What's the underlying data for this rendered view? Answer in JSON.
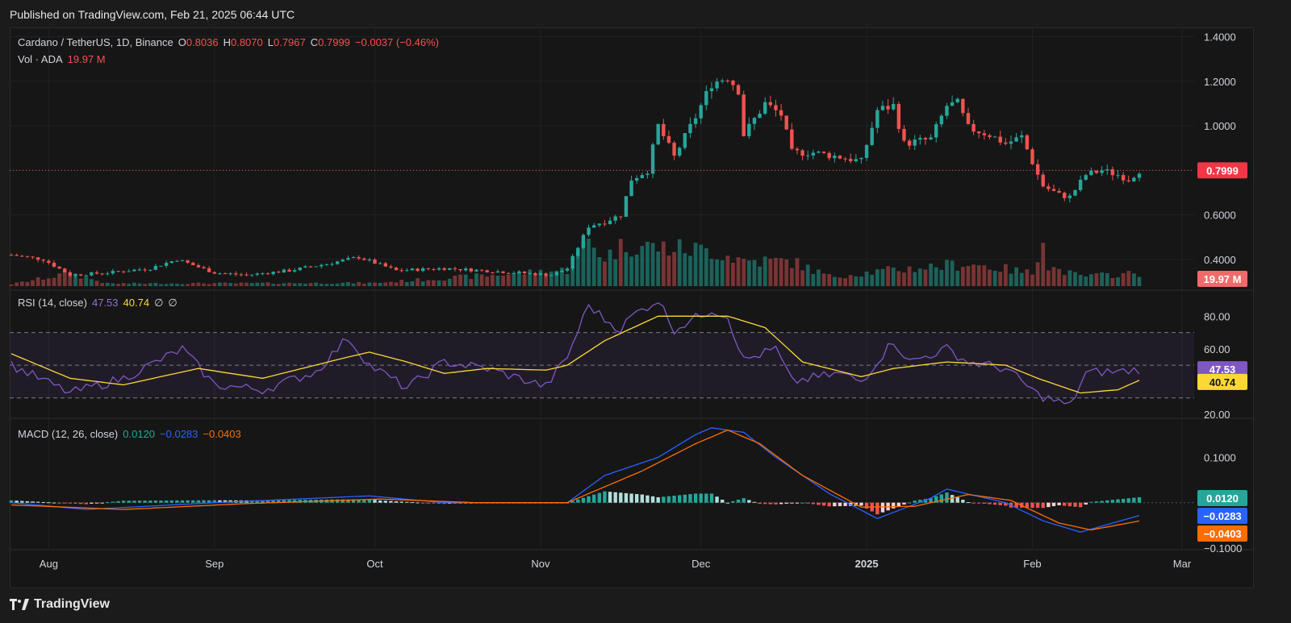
{
  "header": {
    "published": "Published on TradingView.com, Feb 21, 2025 06:44 UTC"
  },
  "footer": {
    "brand": "TradingView"
  },
  "colors": {
    "up": "#26a69a",
    "down": "#ef5350",
    "rsi": "#7e57c2",
    "rsi_ma": "#fdd835",
    "macd": "#2962ff",
    "signal": "#ff6d00"
  },
  "main_legend": {
    "symbol": "Cardano / TetherUS, 1D, Binance",
    "o_label": "O",
    "o": "0.8036",
    "h_label": "H",
    "h": "0.8070",
    "l_label": "L",
    "l": "0.7967",
    "c_label": "C",
    "c": "0.7999",
    "change": "−0.0037 (−0.46%)"
  },
  "vol_legend": {
    "label": "Vol · ADA",
    "value": "19.97 M"
  },
  "rsi_legend": {
    "label": "RSI (14, close)",
    "rsi": "47.53",
    "ma": "40.74",
    "extra1": "∅",
    "extra2": "∅"
  },
  "macd_legend": {
    "label": "MACD (12, 26, close)",
    "hist": "0.0120",
    "macd": "−0.0283",
    "signal": "−0.0403"
  },
  "price_axis": {
    "ticks": [
      "1.4000",
      "1.2000",
      "1.0000",
      "0.6000",
      "0.4000"
    ],
    "last_price": "0.7999",
    "last_volume": "19.97 M"
  },
  "rsi_axis": {
    "ticks": [
      "80.00",
      "60.00",
      "20.00"
    ],
    "rsi_badge": "47.53",
    "ma_badge": "40.74"
  },
  "macd_axis": {
    "ticks": [
      "0.1000",
      "−0.1000"
    ],
    "hist_badge": "0.0120",
    "macd_badge": "−0.0283",
    "signal_badge": "−0.0403"
  },
  "time_axis": {
    "labels": [
      "Aug",
      "Sep",
      "Oct",
      "Nov",
      "Dec",
      "2025",
      "Feb",
      "Mar"
    ]
  },
  "chart_data": {
    "type": "candlestick",
    "symbol": "ADA/USDT",
    "interval": "1D",
    "price_range": [
      0.28,
      1.42
    ],
    "volume_unit": "M",
    "price_path": [
      [
        "2024-07-25",
        0.42
      ],
      [
        "2024-07-31",
        0.4
      ],
      [
        "2024-08-05",
        0.33
      ],
      [
        "2024-08-12",
        0.34
      ],
      [
        "2024-08-20",
        0.36
      ],
      [
        "2024-08-25",
        0.4
      ],
      [
        "2024-09-01",
        0.34
      ],
      [
        "2024-09-07",
        0.33
      ],
      [
        "2024-09-15",
        0.35
      ],
      [
        "2024-09-22",
        0.38
      ],
      [
        "2024-09-28",
        0.41
      ],
      [
        "2024-10-05",
        0.35
      ],
      [
        "2024-10-14",
        0.36
      ],
      [
        "2024-10-21",
        0.35
      ],
      [
        "2024-10-28",
        0.34
      ],
      [
        "2024-11-03",
        0.33
      ],
      [
        "2024-11-06",
        0.36
      ],
      [
        "2024-11-10",
        0.55
      ],
      [
        "2024-11-13",
        0.57
      ],
      [
        "2024-11-16",
        0.6
      ],
      [
        "2024-11-18",
        0.76
      ],
      [
        "2024-11-21",
        0.8
      ],
      [
        "2024-11-23",
        1.0
      ],
      [
        "2024-11-26",
        0.86
      ],
      [
        "2024-11-30",
        1.04
      ],
      [
        "2024-12-03",
        1.19
      ],
      [
        "2024-12-06",
        1.22
      ],
      [
        "2024-12-08",
        1.16
      ],
      [
        "2024-12-09",
        0.96
      ],
      [
        "2024-12-13",
        1.1
      ],
      [
        "2024-12-16",
        1.05
      ],
      [
        "2024-12-18",
        0.88
      ],
      [
        "2024-12-22",
        0.88
      ],
      [
        "2024-12-27",
        0.86
      ],
      [
        "2024-12-31",
        0.84
      ],
      [
        "2025-01-03",
        1.07
      ],
      [
        "2025-01-06",
        1.09
      ],
      [
        "2025-01-08",
        0.92
      ],
      [
        "2025-01-13",
        0.94
      ],
      [
        "2025-01-16",
        1.09
      ],
      [
        "2025-01-18",
        1.1
      ],
      [
        "2025-01-20",
        0.99
      ],
      [
        "2025-01-24",
        0.96
      ],
      [
        "2025-01-27",
        0.92
      ],
      [
        "2025-01-30",
        0.95
      ],
      [
        "2025-02-02",
        0.78
      ],
      [
        "2025-02-03",
        0.73
      ],
      [
        "2025-02-06",
        0.69
      ],
      [
        "2025-02-08",
        0.68
      ],
      [
        "2025-02-11",
        0.78
      ],
      [
        "2025-02-14",
        0.8
      ],
      [
        "2025-02-17",
        0.78
      ],
      [
        "2025-02-19",
        0.76
      ],
      [
        "2025-02-21",
        0.7999
      ]
    ],
    "volume_path": [
      [
        "2024-07-25",
        3
      ],
      [
        "2024-08-05",
        20
      ],
      [
        "2024-08-12",
        4
      ],
      [
        "2024-10-01",
        5
      ],
      [
        "2024-11-06",
        25
      ],
      [
        "2024-11-10",
        70
      ],
      [
        "2024-11-13",
        45
      ],
      [
        "2024-11-17",
        65
      ],
      [
        "2024-11-23",
        60
      ],
      [
        "2024-12-03",
        55
      ],
      [
        "2024-12-09",
        40
      ],
      [
        "2024-12-18",
        38
      ],
      [
        "2024-12-25",
        15
      ],
      [
        "2025-01-06",
        25
      ],
      [
        "2025-01-20",
        35
      ],
      [
        "2025-02-01",
        20
      ],
      [
        "2025-02-03",
        85
      ],
      [
        "2025-02-04",
        30
      ],
      [
        "2025-02-10",
        15
      ],
      [
        "2025-02-21",
        19.97
      ]
    ],
    "rsi": {
      "period": 14,
      "last": 47.53,
      "ma_last": 40.74,
      "range": [
        20,
        90
      ],
      "levels": [
        70,
        50,
        30
      ],
      "path": [
        [
          "2024-07-25",
          50
        ],
        [
          "2024-08-05",
          33
        ],
        [
          "2024-08-15",
          42
        ],
        [
          "2024-08-26",
          60
        ],
        [
          "2024-09-01",
          38
        ],
        [
          "2024-09-10",
          35
        ],
        [
          "2024-09-20",
          46
        ],
        [
          "2024-09-26",
          67
        ],
        [
          "2024-09-30",
          50
        ],
        [
          "2024-10-07",
          36
        ],
        [
          "2024-10-14",
          52
        ],
        [
          "2024-10-22",
          48
        ],
        [
          "2024-11-02",
          37
        ],
        [
          "2024-11-06",
          55
        ],
        [
          "2024-11-10",
          87
        ],
        [
          "2024-11-13",
          78
        ],
        [
          "2024-11-16",
          72
        ],
        [
          "2024-11-18",
          80
        ],
        [
          "2024-11-23",
          90
        ],
        [
          "2024-11-26",
          72
        ],
        [
          "2024-12-03",
          84
        ],
        [
          "2024-12-06",
          80
        ],
        [
          "2024-12-09",
          53
        ],
        [
          "2024-12-15",
          60
        ],
        [
          "2024-12-18",
          40
        ],
        [
          "2024-12-27",
          45
        ],
        [
          "2024-12-31",
          40
        ],
        [
          "2025-01-06",
          65
        ],
        [
          "2025-01-09",
          52
        ],
        [
          "2025-01-16",
          60
        ],
        [
          "2025-01-20",
          52
        ],
        [
          "2025-01-27",
          48
        ],
        [
          "2025-02-02",
          32
        ],
        [
          "2025-02-08",
          25
        ],
        [
          "2025-02-11",
          45
        ],
        [
          "2025-02-14",
          46
        ],
        [
          "2025-02-17",
          46
        ],
        [
          "2025-02-21",
          47.53
        ]
      ],
      "ma_path": [
        [
          "2024-07-25",
          57
        ],
        [
          "2024-08-05",
          42
        ],
        [
          "2024-08-15",
          38
        ],
        [
          "2024-08-29",
          48
        ],
        [
          "2024-09-10",
          42
        ],
        [
          "2024-09-26",
          55
        ],
        [
          "2024-09-30",
          58
        ],
        [
          "2024-10-07",
          52
        ],
        [
          "2024-10-14",
          45
        ],
        [
          "2024-10-22",
          48
        ],
        [
          "2024-11-02",
          47
        ],
        [
          "2024-11-06",
          50
        ],
        [
          "2024-11-13",
          65
        ],
        [
          "2024-11-23",
          80
        ],
        [
          "2024-12-06",
          80
        ],
        [
          "2024-12-13",
          73
        ],
        [
          "2024-12-20",
          52
        ],
        [
          "2024-12-31",
          43
        ],
        [
          "2025-01-06",
          48
        ],
        [
          "2025-01-16",
          52
        ],
        [
          "2025-01-27",
          50
        ],
        [
          "2025-02-02",
          42
        ],
        [
          "2025-02-10",
          33
        ],
        [
          "2025-02-17",
          35
        ],
        [
          "2025-02-21",
          40.74
        ]
      ]
    },
    "macd": {
      "fast": 12,
      "slow": 26,
      "last_hist": 0.012,
      "last_macd": -0.0283,
      "last_signal": -0.0403,
      "range": [
        -0.1,
        0.17
      ],
      "macd_path": [
        [
          "2024-07-25",
          0.0
        ],
        [
          "2024-08-08",
          -0.015
        ],
        [
          "2024-09-01",
          0.0
        ],
        [
          "2024-09-30",
          0.015
        ],
        [
          "2024-10-14",
          0.0
        ],
        [
          "2024-11-06",
          0.0
        ],
        [
          "2024-11-13",
          0.06
        ],
        [
          "2024-11-23",
          0.1
        ],
        [
          "2024-11-30",
          0.15
        ],
        [
          "2024-12-03",
          0.165
        ],
        [
          "2024-12-09",
          0.155
        ],
        [
          "2024-12-15",
          0.1
        ],
        [
          "2024-12-25",
          0.02
        ],
        [
          "2025-01-03",
          -0.035
        ],
        [
          "2025-01-13",
          0.01
        ],
        [
          "2025-01-16",
          0.03
        ],
        [
          "2025-01-27",
          0.0
        ],
        [
          "2025-02-03",
          -0.04
        ],
        [
          "2025-02-10",
          -0.065
        ],
        [
          "2025-02-21",
          -0.0283
        ]
      ],
      "signal_path": [
        [
          "2024-07-25",
          -0.005
        ],
        [
          "2024-08-15",
          -0.015
        ],
        [
          "2024-09-07",
          -0.002
        ],
        [
          "2024-10-02",
          0.008
        ],
        [
          "2024-10-20",
          0.0
        ],
        [
          "2024-11-06",
          0.0
        ],
        [
          "2024-11-20",
          0.07
        ],
        [
          "2024-11-30",
          0.13
        ],
        [
          "2024-12-06",
          0.16
        ],
        [
          "2024-12-12",
          0.13
        ],
        [
          "2024-12-20",
          0.06
        ],
        [
          "2024-12-31",
          -0.01
        ],
        [
          "2025-01-10",
          -0.008
        ],
        [
          "2025-01-20",
          0.018
        ],
        [
          "2025-01-28",
          0.005
        ],
        [
          "2025-02-06",
          -0.045
        ],
        [
          "2025-02-12",
          -0.06
        ],
        [
          "2025-02-21",
          -0.0403
        ]
      ]
    }
  }
}
